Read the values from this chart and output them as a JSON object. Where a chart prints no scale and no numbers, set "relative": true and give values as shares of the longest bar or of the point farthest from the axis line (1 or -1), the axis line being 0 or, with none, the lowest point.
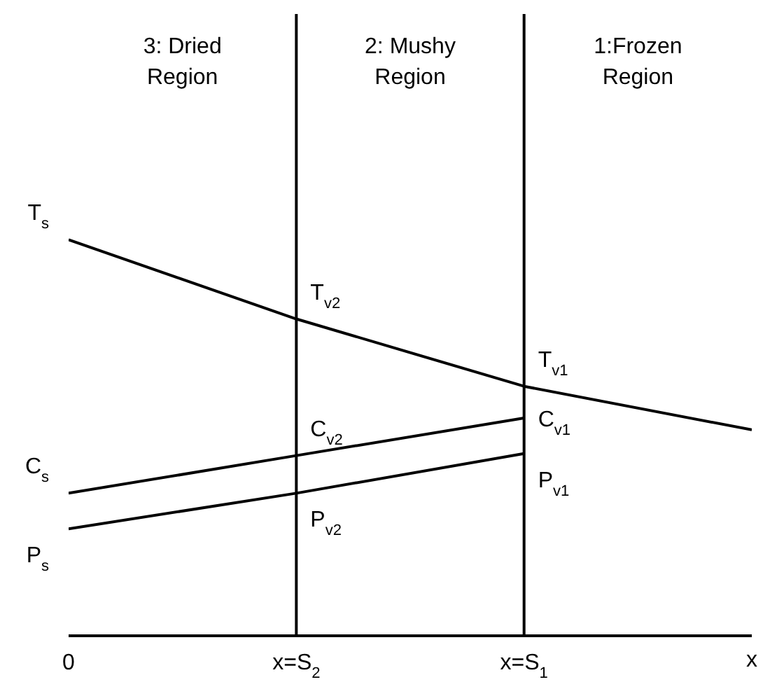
{
  "chart_data": {
    "type": "line",
    "relative": true,
    "categories": [
      "0",
      "x=S$_{2}$",
      "x=S$_{1}$",
      null
    ],
    "xlabel": "x",
    "series": [
      {
        "color": "#000000",
        "values": [
          1,
          0.8,
          0.63,
          0.52
        ]
      },
      {
        "color": "#000000",
        "values": [
          0.36,
          0.455,
          0.55,
          null
        ]
      },
      {
        "color": "#000000",
        "values": [
          0.27,
          0.36,
          0.46,
          null
        ]
      }
    ],
    "ref_lines": [
      {
        "axis": "x",
        "value": "x=S$_{2}$",
        "color": "#000000"
      },
      {
        "axis": "x",
        "value": "x=S$_{1}$",
        "color": "#000000"
      }
    ],
    "annotations": [
      "3: Dried Region",
      "2: Mushy Region",
      "1:Frozen Region",
      {
        "text": "T$_{s}$",
        "x": "0",
        "y": 1
      },
      {
        "text": "C$_{s}$",
        "x": "0",
        "y": 0.36
      },
      {
        "text": "P$_{s}$",
        "x": "0",
        "y": 0.27
      },
      {
        "text": "T$_{v2}$",
        "x": "x=S$_{2}$",
        "y": 0.8
      },
      {
        "text": "C$_{v2}$",
        "x": "x=S$_{2}$",
        "y": 0.455
      },
      {
        "text": "P$_{v2}$",
        "x": "x=S$_{2}$",
        "y": 0.36
      },
      {
        "text": "T$_{v1}$",
        "x": "x=S$_{1}$",
        "y": 0.63
      },
      {
        "text": "C$_{v1}$",
        "x": "x=S$_{1}$",
        "y": 0.55
      },
      {
        "text": "P$_{v1}$",
        "x": "x=S$_{1}$",
        "y": 0.46
      }
    ],
    "grid": false,
    "marker": "none",
    "line_style": "solid"
  }
}
